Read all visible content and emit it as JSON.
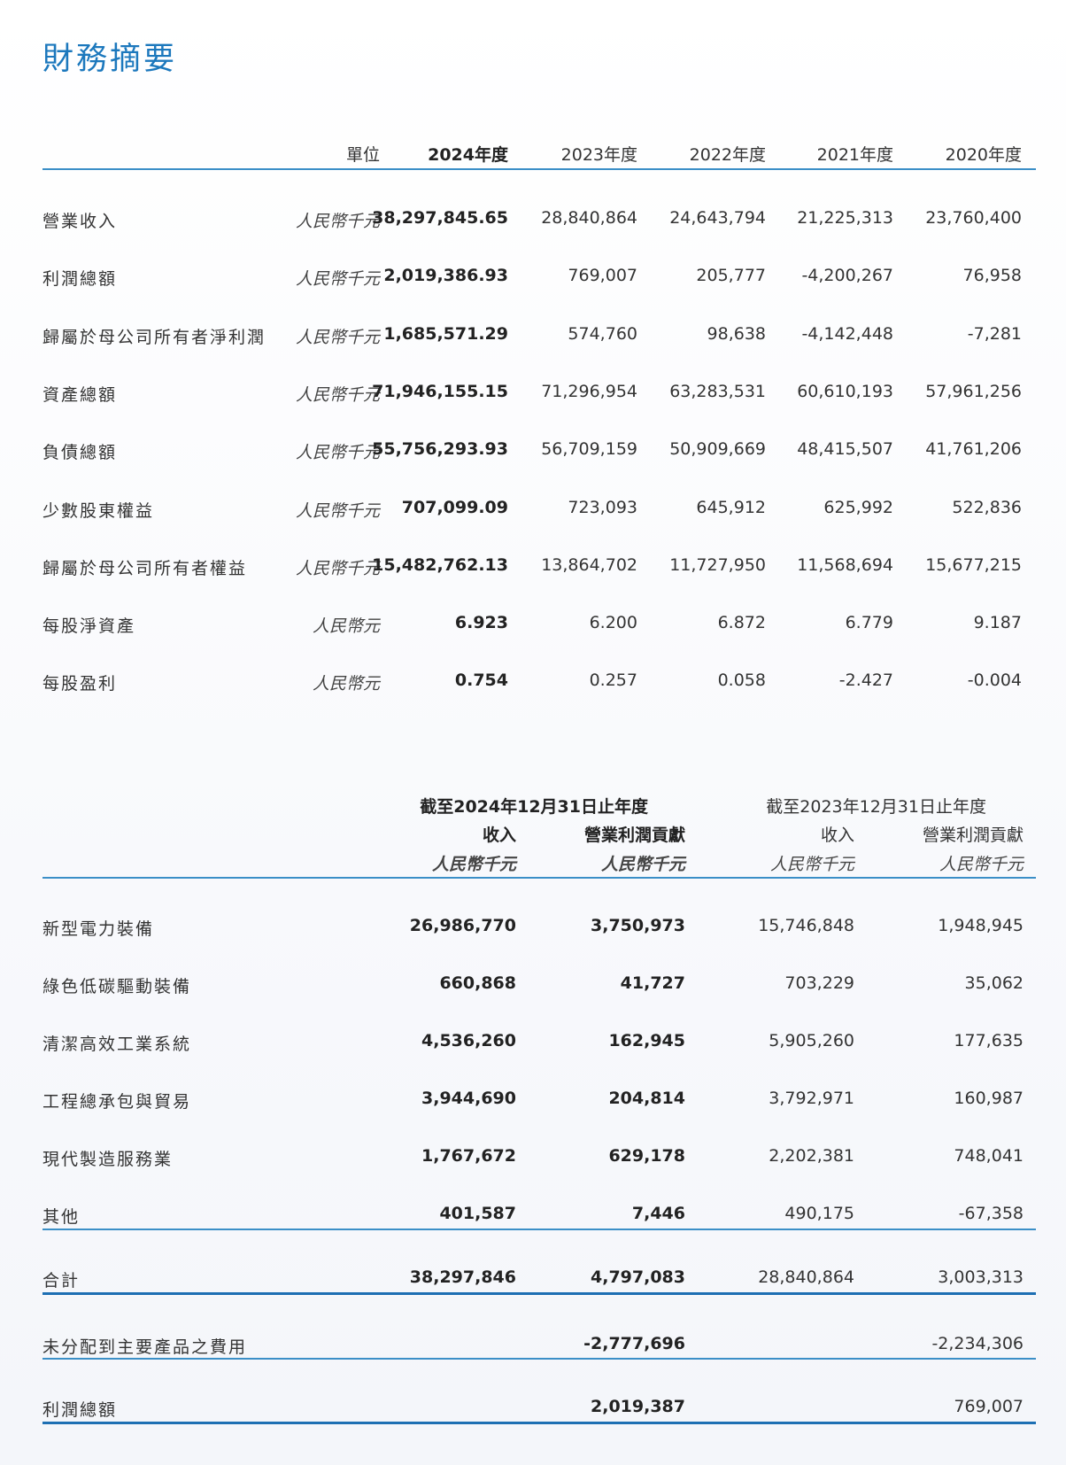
{
  "title": "財務摘要",
  "summary": {
    "headers": [
      "單位",
      "2024年度",
      "2023年度",
      "2022年度",
      "2021年度",
      "2020年度"
    ],
    "rows": [
      {
        "label": "營業收入",
        "unit": "人民幣千元",
        "values": [
          "38,297,845.65",
          "28,840,864",
          "24,643,794",
          "21,225,313",
          "23,760,400"
        ]
      },
      {
        "label": "利潤總額",
        "unit": "人民幣千元",
        "values": [
          "2,019,386.93",
          "769,007",
          "205,777",
          "-4,200,267",
          "76,958"
        ]
      },
      {
        "label": "歸屬於母公司所有者淨利潤",
        "unit": "人民幣千元",
        "values": [
          "1,685,571.29",
          "574,760",
          "98,638",
          "-4,142,448",
          "-7,281"
        ]
      },
      {
        "label": "資產總額",
        "unit": "人民幣千元",
        "values": [
          "71,946,155.15",
          "71,296,954",
          "63,283,531",
          "60,610,193",
          "57,961,256"
        ]
      },
      {
        "label": "負債總額",
        "unit": "人民幣千元",
        "values": [
          "55,756,293.93",
          "56,709,159",
          "50,909,669",
          "48,415,507",
          "41,761,206"
        ]
      },
      {
        "label": "少數股東權益",
        "unit": "人民幣千元",
        "values": [
          "707,099.09",
          "723,093",
          "645,912",
          "625,992",
          "522,836"
        ]
      },
      {
        "label": "歸屬於母公司所有者權益",
        "unit": "人民幣千元",
        "values": [
          "15,482,762.13",
          "13,864,702",
          "11,727,950",
          "11,568,694",
          "15,677,215"
        ]
      },
      {
        "label": "每股淨資產",
        "unit": "人民幣元",
        "values": [
          "6.923",
          "6.200",
          "6.872",
          "6.779",
          "9.187"
        ]
      },
      {
        "label": "每股盈利",
        "unit": "人民幣元",
        "values": [
          "0.754",
          "0.257",
          "0.058",
          "-2.427",
          "-0.004"
        ]
      }
    ]
  },
  "segments": {
    "period_2024": "截至2024年12月31日止年度",
    "period_2023": "截至2023年12月31日止年度",
    "col_headers": [
      "收入",
      "營業利潤貢獻",
      "收入",
      "營業利潤貢獻"
    ],
    "col_units": [
      "人民幣千元",
      "人民幣千元",
      "人民幣千元",
      "人民幣千元"
    ],
    "rows": [
      {
        "label": "新型電力裝備",
        "values": [
          "26,986,770",
          "3,750,973",
          "15,746,848",
          "1,948,945"
        ]
      },
      {
        "label": "綠色低碳驅動裝備",
        "values": [
          "660,868",
          "41,727",
          "703,229",
          "35,062"
        ]
      },
      {
        "label": "清潔高效工業系統",
        "values": [
          "4,536,260",
          "162,945",
          "5,905,260",
          "177,635"
        ]
      },
      {
        "label": "工程總承包與貿易",
        "values": [
          "3,944,690",
          "204,814",
          "3,792,971",
          "160,987"
        ]
      },
      {
        "label": "現代製造服務業",
        "values": [
          "1,767,672",
          "629,178",
          "2,202,381",
          "748,041"
        ]
      },
      {
        "label": "其他",
        "values": [
          "401,587",
          "7,446",
          "490,175",
          "-67,358"
        ]
      }
    ],
    "total": {
      "label": "合計",
      "values": [
        "38,297,846",
        "4,797,083",
        "28,840,864",
        "3,003,313"
      ]
    },
    "unallocated": {
      "label": "未分配到主要產品之費用",
      "values": [
        "-2,777,696",
        "-2,234,306"
      ]
    },
    "profit": {
      "label": "利潤總額",
      "values": [
        "2,019,387",
        "769,007"
      ]
    }
  },
  "colors": {
    "title": "#1c78bd",
    "rule": "#3b8fc7",
    "rule_thick": "#1d6fb3"
  }
}
